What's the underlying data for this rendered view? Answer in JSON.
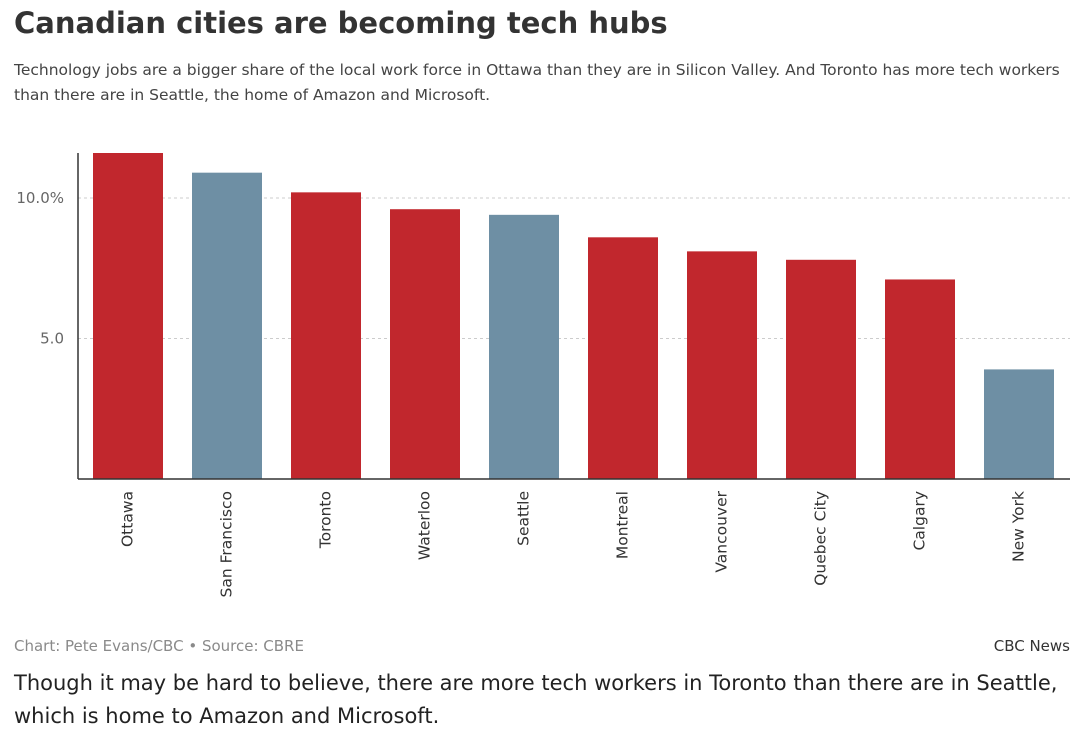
{
  "header": {
    "title": "Canadian cities are becoming tech hubs",
    "subtitle": "Technology jobs are a bigger share of the local work force in Ottawa than they are in Silicon Valley. And Toronto has more tech workers than there are in Seattle, the home of Amazon and Microsoft."
  },
  "footer": {
    "source": "Chart: Pete Evans/CBC • Source: CBRE",
    "brand": "CBC News"
  },
  "caption": "Though it may be hard to believe, there are more tech workers in Toronto than there are in Seattle, which is home to Amazon and Microsoft.",
  "colors": {
    "canada": "#c1272d",
    "usa": "#6e8fa4",
    "grid": "#cccccc",
    "axis": "#333333",
    "tick_text": "#666666",
    "category_text": "#333333"
  },
  "chart_data": {
    "type": "bar",
    "categories": [
      "Ottawa",
      "San Francisco",
      "Toronto",
      "Waterloo",
      "Seattle",
      "Montreal",
      "Vancouver",
      "Quebec City",
      "Calgary",
      "New York"
    ],
    "values": [
      11.6,
      10.9,
      10.2,
      9.6,
      9.4,
      8.6,
      8.1,
      7.8,
      7.1,
      3.9
    ],
    "bar_colors": [
      "canada",
      "usa",
      "canada",
      "canada",
      "usa",
      "canada",
      "canada",
      "canada",
      "canada",
      "usa"
    ],
    "title": "Canadian cities are becoming tech hubs",
    "xlabel": "",
    "ylabel": "",
    "ylim": [
      0,
      11.6
    ],
    "yticks": [
      {
        "value": 5,
        "label": "5.0"
      },
      {
        "value": 10,
        "label": "10.0%"
      }
    ],
    "grid": true,
    "grid_style": "dashed",
    "legend": "none"
  }
}
